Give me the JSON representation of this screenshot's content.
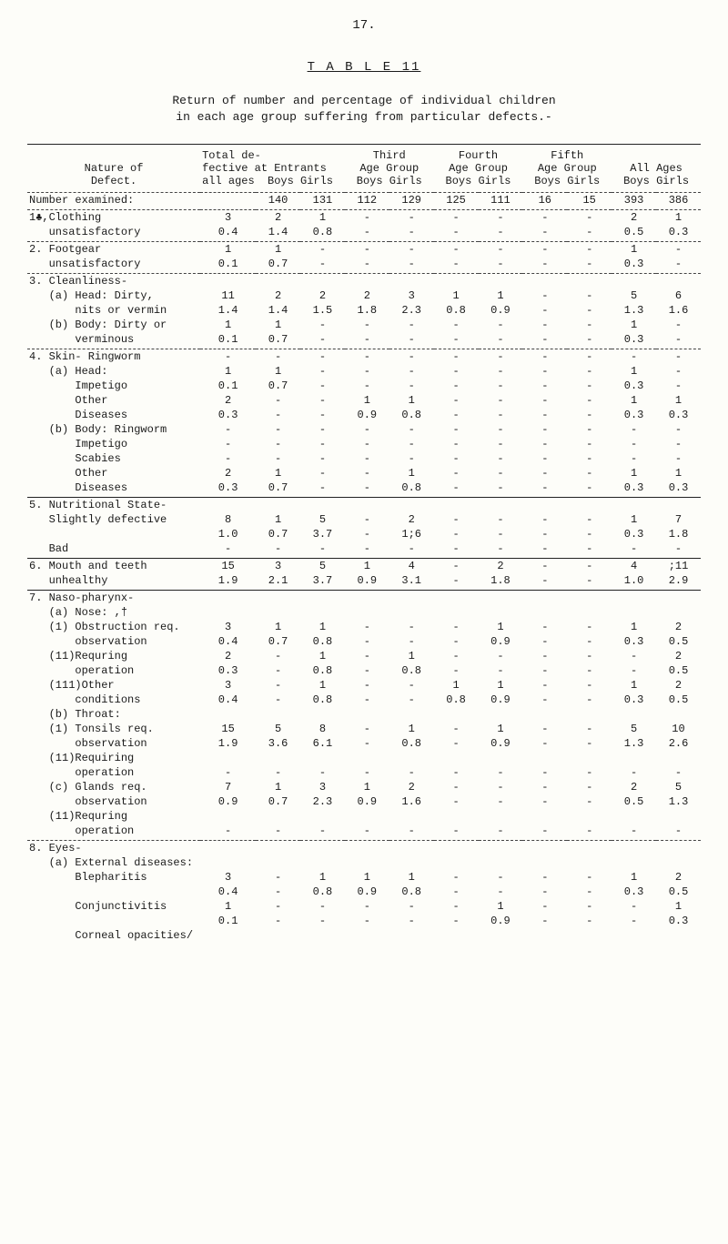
{
  "page_number": "17.",
  "table_label": "T A B L E  11",
  "subtitle_l1": "Return of number and percentage of individual children",
  "subtitle_l2": "in each age group suffering from particular defects.-",
  "h": {
    "nature": "Nature of\nDefect.",
    "total": "Total de-\nfective at\nall ages",
    "entrants": "Entrants\nBoys Girls",
    "third": "Third\nAge Group\nBoys Girls",
    "fourth": "Fourth\nAge Group\nBoys Girls",
    "fifth": "Fifth\nAge Group\nBoys Girls",
    "all": "All Ages\nBoys Girls"
  },
  "num_ex_label": "Number examined:",
  "num_ex": {
    "eb": "140",
    "eg": "131",
    "tb": "112",
    "tg": "129",
    "fb": "125",
    "fg": "111",
    "ib": "16",
    "ig": "15",
    "ab": "393",
    "ag": "386"
  },
  "rows": [
    {
      "n": "1♣,Clothing",
      "t": "3",
      "eb": "2",
      "eg": "1",
      "tb": "-",
      "tg": "-",
      "fb": "-",
      "fg": "-",
      "ib": "-",
      "ig": "-",
      "ab": "2",
      "ag": "1"
    },
    {
      "n": "   unsatisfactory",
      "t": "0.4",
      "eb": "1.4",
      "eg": "0.8",
      "tb": "-",
      "tg": "-",
      "fb": "-",
      "fg": "-",
      "ib": "-",
      "ig": "-",
      "ab": "0.5",
      "ag": "0.3",
      "sep": true
    },
    {
      "n": "2. Footgear",
      "t": "1",
      "eb": "1",
      "eg": "-",
      "tb": "-",
      "tg": "-",
      "fb": "-",
      "fg": "-",
      "ib": "-",
      "ig": "-",
      "ab": "1",
      "ag": "-"
    },
    {
      "n": "   unsatisfactory",
      "t": "0.1",
      "eb": "0.7",
      "eg": "-",
      "tb": "-",
      "tg": "-",
      "fb": "-",
      "fg": "-",
      "ib": "-",
      "ig": "-",
      "ab": "0.3",
      "ag": "-",
      "sep": true
    },
    {
      "n": "3. Cleanliness-",
      "t": "",
      "eb": "",
      "eg": "",
      "tb": "",
      "tg": "",
      "fb": "",
      "fg": "",
      "ib": "",
      "ig": "",
      "ab": "",
      "ag": ""
    },
    {
      "n": "   (a) Head: Dirty,",
      "t": "11",
      "eb": "2",
      "eg": "2",
      "tb": "2",
      "tg": "3",
      "fb": "1",
      "fg": "1",
      "ib": "-",
      "ig": "-",
      "ab": "5",
      "ag": "6"
    },
    {
      "n": "       nits or vermin",
      "t": "1.4",
      "eb": "1.4",
      "eg": "1.5",
      "tb": "1.8",
      "tg": "2.3",
      "fb": "0.8",
      "fg": "0.9",
      "ib": "-",
      "ig": "-",
      "ab": "1.3",
      "ag": "1.6"
    },
    {
      "n": "   (b) Body: Dirty or",
      "t": "1",
      "eb": "1",
      "eg": "-",
      "tb": "-",
      "tg": "-",
      "fb": "-",
      "fg": "-",
      "ib": "-",
      "ig": "-",
      "ab": "1",
      "ag": "-"
    },
    {
      "n": "       verminous",
      "t": "0.1",
      "eb": "0.7",
      "eg": "-",
      "tb": "-",
      "tg": "-",
      "fb": "-",
      "fg": "-",
      "ib": "-",
      "ig": "-",
      "ab": "0.3",
      "ag": "-",
      "sep": true
    },
    {
      "n": "4. Skin- Ringworm",
      "t": "-",
      "eb": "-",
      "eg": "-",
      "tb": "-",
      "tg": "-",
      "fb": "-",
      "fg": "-",
      "ib": "-",
      "ig": "-",
      "ab": "-",
      "ag": "-"
    },
    {
      "n": "   (a) Head:",
      "t": "1",
      "eb": "1",
      "eg": "-",
      "tb": "-",
      "tg": "-",
      "fb": "-",
      "fg": "-",
      "ib": "-",
      "ig": "-",
      "ab": "1",
      "ag": "-"
    },
    {
      "n": "       Impetigo",
      "t": "0.1",
      "eb": "0.7",
      "eg": "-",
      "tb": "-",
      "tg": "-",
      "fb": "-",
      "fg": "-",
      "ib": "-",
      "ig": "-",
      "ab": "0.3",
      "ag": "-"
    },
    {
      "n": "       Other",
      "t": "2",
      "eb": "-",
      "eg": "-",
      "tb": "1",
      "tg": "1",
      "fb": "-",
      "fg": "-",
      "ib": "-",
      "ig": "-",
      "ab": "1",
      "ag": "1"
    },
    {
      "n": "       Diseases",
      "t": "0.3",
      "eb": "-",
      "eg": "-",
      "tb": "0.9",
      "tg": "0.8",
      "fb": "-",
      "fg": "-",
      "ib": "-",
      "ig": "-",
      "ab": "0.3",
      "ag": "0.3"
    },
    {
      "n": "   (b) Body: Ringworm",
      "t": "-",
      "eb": "-",
      "eg": "-",
      "tb": "-",
      "tg": "-",
      "fb": "-",
      "fg": "-",
      "ib": "-",
      "ig": "-",
      "ab": "-",
      "ag": "-"
    },
    {
      "n": "       Impetigo",
      "t": "-",
      "eb": "-",
      "eg": "-",
      "tb": "-",
      "tg": "-",
      "fb": "-",
      "fg": "-",
      "ib": "-",
      "ig": "-",
      "ab": "-",
      "ag": "-"
    },
    {
      "n": "       Scabies",
      "t": "-",
      "eb": "-",
      "eg": "-",
      "tb": "-",
      "tg": "-",
      "fb": "-",
      "fg": "-",
      "ib": "-",
      "ig": "-",
      "ab": "-",
      "ag": "-"
    },
    {
      "n": "       Other",
      "t": "2",
      "eb": "1",
      "eg": "-",
      "tb": "-",
      "tg": "1",
      "fb": "-",
      "fg": "-",
      "ib": "-",
      "ig": "-",
      "ab": "1",
      "ag": "1"
    },
    {
      "n": "       Diseases",
      "t": "0.3",
      "eb": "0.7",
      "eg": "-",
      "tb": "-",
      "tg": "0.8",
      "fb": "-",
      "fg": "-",
      "ib": "-",
      "ig": "-",
      "ab": "0.3",
      "ag": "0.3",
      "sepSolid": true
    },
    {
      "n": "5. Nutritional State-",
      "t": "",
      "eb": "",
      "eg": "",
      "tb": "",
      "tg": "",
      "fb": "",
      "fg": "",
      "ib": "",
      "ig": "",
      "ab": "",
      "ag": ""
    },
    {
      "n": "   Slightly defective",
      "t": "8",
      "eb": "1",
      "eg": "5",
      "tb": "-",
      "tg": "2",
      "fb": "-",
      "fg": "-",
      "ib": "-",
      "ig": "-",
      "ab": "1",
      "ag": "7"
    },
    {
      "n": "",
      "t": "1.0",
      "eb": "0.7",
      "eg": "3.7",
      "tb": "-",
      "tg": "1;6",
      "fb": "-",
      "fg": "-",
      "ib": "-",
      "ig": "-",
      "ab": "0.3",
      "ag": "1.8"
    },
    {
      "n": "   Bad",
      "t": "-",
      "eb": "-",
      "eg": "-",
      "tb": "-",
      "tg": "-",
      "fb": "-",
      "fg": "-",
      "ib": "-",
      "ig": "-",
      "ab": "-",
      "ag": "-",
      "sepSolid": true
    },
    {
      "n": "6. Mouth and teeth",
      "t": "15",
      "eb": "3",
      "eg": "5",
      "tb": "1",
      "tg": "4",
      "fb": "-",
      "fg": "2",
      "ib": "-",
      "ig": "-",
      "ab": "4",
      "ag": ";11"
    },
    {
      "n": "   unhealthy",
      "t": "1.9",
      "eb": "2.1",
      "eg": "3.7",
      "tb": "0.9",
      "tg": "3.1",
      "fb": "-",
      "fg": "1.8",
      "ib": "-",
      "ig": "-",
      "ab": "1.0",
      "ag": "2.9",
      "sepSolid": true
    },
    {
      "n": "7. Naso-pharynx-",
      "t": "",
      "eb": "",
      "eg": "",
      "tb": "",
      "tg": "",
      "fb": "",
      "fg": "",
      "ib": "",
      "ig": "",
      "ab": "",
      "ag": ""
    },
    {
      "n": "   (a) Nose: ,†",
      "t": "",
      "eb": "",
      "eg": "",
      "tb": "",
      "tg": "",
      "fb": "",
      "fg": "",
      "ib": "",
      "ig": "",
      "ab": "",
      "ag": ""
    },
    {
      "n": "   (1) Obstruction req.",
      "t": "3",
      "eb": "1",
      "eg": "1",
      "tb": "-",
      "tg": "-",
      "fb": "-",
      "fg": "1",
      "ib": "-",
      "ig": "-",
      "ab": "1",
      "ag": "2"
    },
    {
      "n": "       observation",
      "t": "0.4",
      "eb": "0.7",
      "eg": "0.8",
      "tb": "-",
      "tg": "-",
      "fb": "-",
      "fg": "0.9",
      "ib": "-",
      "ig": "-",
      "ab": "0.3",
      "ag": "0.5"
    },
    {
      "n": "   (11)Requring",
      "t": "2",
      "eb": "-",
      "eg": "1",
      "tb": "-",
      "tg": "1",
      "fb": "-",
      "fg": "-",
      "ib": "-",
      "ig": "-",
      "ab": "-",
      "ag": "2"
    },
    {
      "n": "       operation",
      "t": "0.3",
      "eb": "-",
      "eg": "0.8",
      "tb": "-",
      "tg": "0.8",
      "fb": "-",
      "fg": "-",
      "ib": "-",
      "ig": "-",
      "ab": "-",
      "ag": "0.5"
    },
    {
      "n": "   (111)Other",
      "t": "3",
      "eb": "-",
      "eg": "1",
      "tb": "-",
      "tg": "-",
      "fb": "1",
      "fg": "1",
      "ib": "-",
      "ig": "-",
      "ab": "1",
      "ag": "2"
    },
    {
      "n": "       conditions",
      "t": "0.4",
      "eb": "-",
      "eg": "0.8",
      "tb": "-",
      "tg": "-",
      "fb": "0.8",
      "fg": "0.9",
      "ib": "-",
      "ig": "-",
      "ab": "0.3",
      "ag": "0.5"
    },
    {
      "n": "   (b) Throat:",
      "t": "",
      "eb": "",
      "eg": "",
      "tb": "",
      "tg": "",
      "fb": "",
      "fg": "",
      "ib": "",
      "ig": "",
      "ab": "",
      "ag": ""
    },
    {
      "n": "   (1) Tonsils req.",
      "t": "15",
      "eb": "5",
      "eg": "8",
      "tb": "-",
      "tg": "1",
      "fb": "-",
      "fg": "1",
      "ib": "-",
      "ig": "-",
      "ab": "5",
      "ag": "10"
    },
    {
      "n": "       observation",
      "t": "1.9",
      "eb": "3.6",
      "eg": "6.1",
      "tb": "-",
      "tg": "0.8",
      "fb": "-",
      "fg": "0.9",
      "ib": "-",
      "ig": "-",
      "ab": "1.3",
      "ag": "2.6"
    },
    {
      "n": "   (11)Requiring",
      "t": "",
      "eb": "",
      "eg": "",
      "tb": "",
      "tg": "",
      "fb": "",
      "fg": "",
      "ib": "",
      "ig": "",
      "ab": "",
      "ag": ""
    },
    {
      "n": "       operation",
      "t": "-",
      "eb": "-",
      "eg": "-",
      "tb": "-",
      "tg": "-",
      "fb": "-",
      "fg": "-",
      "ib": "-",
      "ig": "-",
      "ab": "-",
      "ag": "-"
    },
    {
      "n": "   (c) Glands req.",
      "t": "7",
      "eb": "1",
      "eg": "3",
      "tb": "1",
      "tg": "2",
      "fb": "-",
      "fg": "-",
      "ib": "-",
      "ig": "-",
      "ab": "2",
      "ag": "5"
    },
    {
      "n": "       observation",
      "t": "0.9",
      "eb": "0.7",
      "eg": "2.3",
      "tb": "0.9",
      "tg": "1.6",
      "fb": "-",
      "fg": "-",
      "ib": "-",
      "ig": "-",
      "ab": "0.5",
      "ag": "1.3"
    },
    {
      "n": "   (11)Requring",
      "t": "",
      "eb": "",
      "eg": "",
      "tb": "",
      "tg": "",
      "fb": "",
      "fg": "",
      "ib": "",
      "ig": "",
      "ab": "",
      "ag": ""
    },
    {
      "n": "       operation",
      "t": "-",
      "eb": "-",
      "eg": "-",
      "tb": "-",
      "tg": "-",
      "fb": "-",
      "fg": "-",
      "ib": "-",
      "ig": "-",
      "ab": "-",
      "ag": "-",
      "sep": true
    },
    {
      "n": "8. Eyes-",
      "t": "",
      "eb": "",
      "eg": "",
      "tb": "",
      "tg": "",
      "fb": "",
      "fg": "",
      "ib": "",
      "ig": "",
      "ab": "",
      "ag": ""
    },
    {
      "n": "   (a) External diseases:",
      "t": "",
      "eb": "",
      "eg": "",
      "tb": "",
      "tg": "",
      "fb": "",
      "fg": "",
      "ib": "",
      "ig": "",
      "ab": "",
      "ag": ""
    },
    {
      "n": "       Blepharitis",
      "t": "3",
      "eb": "-",
      "eg": "1",
      "tb": "1",
      "tg": "1",
      "fb": "-",
      "fg": "-",
      "ib": "-",
      "ig": "-",
      "ab": "1",
      "ag": "2"
    },
    {
      "n": "",
      "t": "0.4",
      "eb": "-",
      "eg": "0.8",
      "tb": "0.9",
      "tg": "0.8",
      "fb": "-",
      "fg": "-",
      "ib": "-",
      "ig": "-",
      "ab": "0.3",
      "ag": "0.5"
    },
    {
      "n": "       Conjunctivitis",
      "t": "1",
      "eb": "-",
      "eg": "-",
      "tb": "-",
      "tg": "-",
      "fb": "-",
      "fg": "1",
      "ib": "-",
      "ig": "-",
      "ab": "-",
      "ag": "1"
    },
    {
      "n": "",
      "t": "0.1",
      "eb": "-",
      "eg": "-",
      "tb": "-",
      "tg": "-",
      "fb": "-",
      "fg": "0.9",
      "ib": "-",
      "ig": "-",
      "ab": "-",
      "ag": "0.3"
    },
    {
      "n": "       Corneal opacities/",
      "t": "",
      "eb": "",
      "eg": "",
      "tb": "",
      "tg": "",
      "fb": "",
      "fg": "",
      "ib": "",
      "ig": "",
      "ab": "",
      "ag": ""
    }
  ]
}
